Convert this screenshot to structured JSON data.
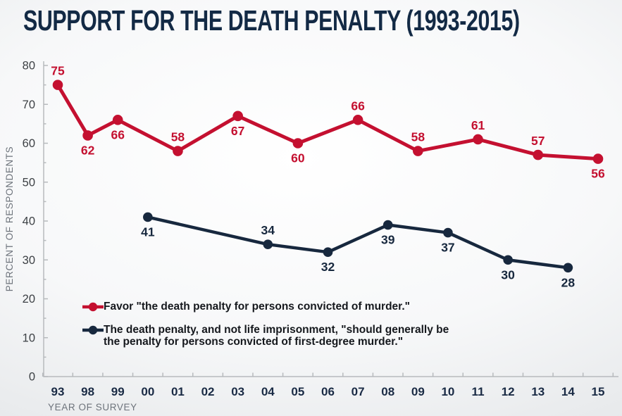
{
  "page": {
    "title": "SUPPORT FOR THE DEATH PENALTY (1993-2015)"
  },
  "colors": {
    "series_favor_red": "#c41030",
    "series_should_navy": "#17283e",
    "title_navy": "#132a45",
    "axis_line_gray": "#b7babd",
    "y_tick_text": "#3d4145",
    "x_tick_text": "#1a2b45",
    "axis_title_text": "#6d737b",
    "legend_text": "#15181d",
    "background_edge": "#dfe1e4",
    "background_center": "#ffffff"
  },
  "chart_data": {
    "type": "line",
    "title": "SUPPORT FOR THE DEATH PENALTY (1993-2015)",
    "xlabel": "YEAR OF SURVEY",
    "ylabel": "PERCENT OF RESPONDENTS",
    "categories": [
      "93",
      "98",
      "99",
      "00",
      "01",
      "02",
      "03",
      "04",
      "05",
      "06",
      "07",
      "08",
      "09",
      "10",
      "11",
      "12",
      "13",
      "14",
      "15"
    ],
    "ylim": [
      0,
      80
    ],
    "ytick_major_step": 10,
    "ytick_minor_step": 5,
    "grid": false,
    "legend_position": "inside-bottom-left",
    "series": [
      {
        "id": "favor",
        "name": "Favor \"the death penalty for persons convicted of murder.\"",
        "color": "#c41030",
        "line_width": 5,
        "marker_radius": 7.3,
        "points": [
          {
            "x": "93",
            "y": 75,
            "label": "75",
            "label_pos": "above"
          },
          {
            "x": "98",
            "y": 62,
            "label": "62",
            "label_pos": "below"
          },
          {
            "x": "99",
            "y": 66,
            "label": "66",
            "label_pos": "below"
          },
          {
            "x": "01",
            "y": 58,
            "label": "58",
            "label_pos": "above"
          },
          {
            "x": "03",
            "y": 67,
            "label": "67",
            "label_pos": "below"
          },
          {
            "x": "05",
            "y": 60,
            "label": "60",
            "label_pos": "below"
          },
          {
            "x": "07",
            "y": 66,
            "label": "66",
            "label_pos": "above"
          },
          {
            "x": "09",
            "y": 58,
            "label": "58",
            "label_pos": "above"
          },
          {
            "x": "11",
            "y": 61,
            "label": "61",
            "label_pos": "above"
          },
          {
            "x": "13",
            "y": 57,
            "label": "57",
            "label_pos": "above"
          },
          {
            "x": "15",
            "y": 56,
            "label": "56",
            "label_pos": "below"
          }
        ]
      },
      {
        "id": "should",
        "name": "The death penalty, and not life imprisonment, \"should generally be the penalty for persons convicted of first-degree murder.\"",
        "color": "#17283e",
        "line_width": 4.5,
        "marker_radius": 6.8,
        "points": [
          {
            "x": "00",
            "y": 41,
            "label": "41",
            "label_pos": "below"
          },
          {
            "x": "04",
            "y": 34,
            "label": "34",
            "label_pos": "above"
          },
          {
            "x": "06",
            "y": 32,
            "label": "32",
            "label_pos": "below"
          },
          {
            "x": "08",
            "y": 39,
            "label": "39",
            "label_pos": "below"
          },
          {
            "x": "10",
            "y": 37,
            "label": "37",
            "label_pos": "below"
          },
          {
            "x": "12",
            "y": 30,
            "label": "30",
            "label_pos": "below"
          },
          {
            "x": "14",
            "y": 28,
            "label": "28",
            "label_pos": "below"
          }
        ]
      }
    ],
    "legend": [
      {
        "series_id": "favor",
        "color": "#c41030",
        "lines": [
          "Favor \"the death penalty for persons convicted of murder.\""
        ]
      },
      {
        "series_id": "should",
        "color": "#17283e",
        "lines": [
          "The death penalty, and not life imprisonment, \"should generally be",
          "the penalty for persons convicted of first-degree murder.\""
        ]
      }
    ]
  }
}
